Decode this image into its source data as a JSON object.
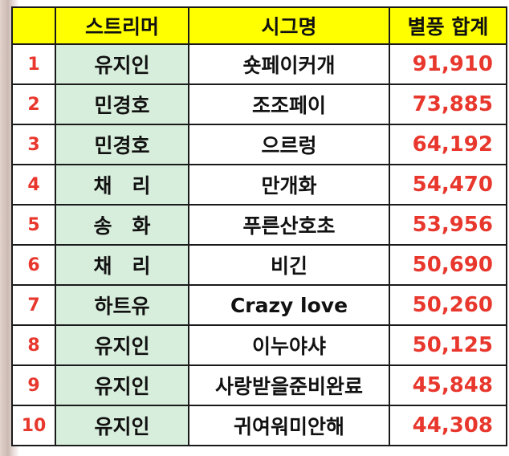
{
  "header": {
    "rank": "",
    "streamer": "스트리머",
    "signature": "시그명",
    "total": "별풍 합계"
  },
  "rows": [
    {
      "rank": "1",
      "streamer": "유지인",
      "signature": "숏페이커개",
      "total": "91,910"
    },
    {
      "rank": "2",
      "streamer": "민경호",
      "signature": "조조페이",
      "total": "73,885"
    },
    {
      "rank": "3",
      "streamer": "민경호",
      "signature": "으르렁",
      "total": "64,192"
    },
    {
      "rank": "4",
      "streamer": "채　리",
      "signature": "만개화",
      "total": "54,470"
    },
    {
      "rank": "5",
      "streamer": "송　화",
      "signature": "푸른산호초",
      "total": "53,956"
    },
    {
      "rank": "6",
      "streamer": "채　리",
      "signature": "비긴",
      "total": "50,690"
    },
    {
      "rank": "7",
      "streamer": "하트유",
      "signature": "Crazy love",
      "total": "50,260"
    },
    {
      "rank": "8",
      "streamer": "유지인",
      "signature": "이누야샤",
      "total": "50,125"
    },
    {
      "rank": "9",
      "streamer": "유지인",
      "signature": "사랑받을준비완료",
      "total": "45,848"
    },
    {
      "rank": "10",
      "streamer": "유지인",
      "signature": "귀여워미안해",
      "total": "44,308"
    }
  ],
  "colors": {
    "header_bg": "#ffff00",
    "streamer_bg": "#d8eedc",
    "accent_red": "#e8372d"
  }
}
